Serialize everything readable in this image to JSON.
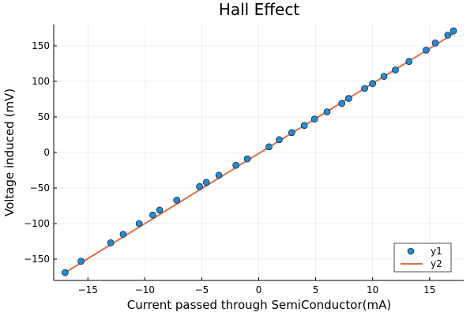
{
  "chart_data": {
    "type": "scatter",
    "title": "Hall Effect",
    "xlabel": "Current passed through SemiConductor(mA)",
    "ylabel": "Voltage induced (mV)",
    "xlim": [
      -18,
      18
    ],
    "ylim": [
      -180,
      180
    ],
    "xticks": [
      -15,
      -10,
      -5,
      0,
      5,
      10,
      15
    ],
    "yticks": [
      -150,
      -100,
      -50,
      0,
      50,
      100,
      150
    ],
    "xtick_labels": [
      "−15",
      "−10",
      "−5",
      "0",
      "5",
      "10",
      "15"
    ],
    "ytick_labels": [
      "−150",
      "−100",
      "−50",
      "0",
      "50",
      "100",
      "150"
    ],
    "grid": true,
    "legend_position": "bottom-right",
    "series": [
      {
        "name": "y1",
        "kind": "scatter",
        "color": "#1f8dd6",
        "x": [
          -17.0,
          -15.6,
          -13.0,
          -11.9,
          -10.5,
          -9.3,
          -8.7,
          -7.2,
          -5.2,
          -4.6,
          -3.5,
          -2.0,
          -1.0,
          0.9,
          1.8,
          2.9,
          4.0,
          4.9,
          6.0,
          7.3,
          7.9,
          9.3,
          10.0,
          11.0,
          12.0,
          13.2,
          14.7,
          15.5,
          16.6,
          17.1
        ],
        "y": [
          -169,
          -153,
          -127,
          -115,
          -100,
          -88,
          -81,
          -67,
          -48,
          -42,
          -32,
          -18,
          -9,
          8,
          18,
          28,
          38,
          47,
          57,
          69,
          76,
          90,
          97,
          107,
          116,
          128,
          144,
          154,
          165,
          171
        ]
      },
      {
        "name": "y2",
        "kind": "line",
        "color": "#e26f46",
        "x": [
          -17.0,
          17.1
        ],
        "y": [
          -169,
          167
        ]
      }
    ]
  }
}
